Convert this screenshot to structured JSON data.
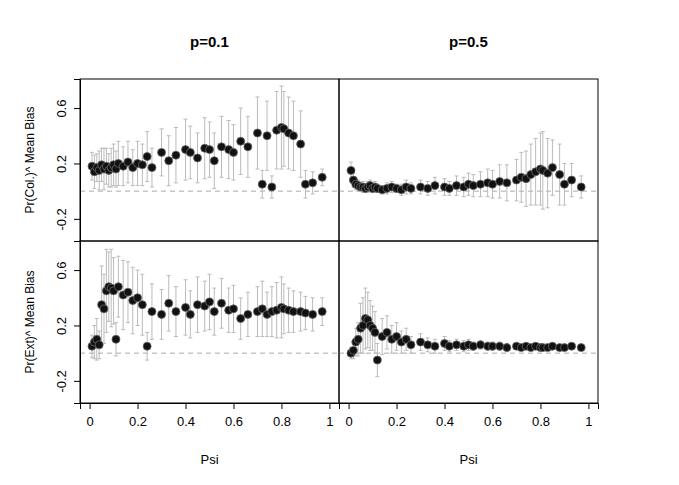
{
  "chart_data": [
    {
      "type": "scatter",
      "title": "p=0.1",
      "ylabel": "Pr(Col.)^ Mean Bias",
      "xlim": [
        -0.04,
        1.04
      ],
      "ylim": [
        -0.36,
        0.81
      ],
      "yticks": [
        -0.2,
        0.2,
        0.6
      ],
      "tick_labels": "y",
      "hline": 0,
      "x": [
        0.01,
        0.02,
        0.03,
        0.04,
        0.05,
        0.06,
        0.07,
        0.08,
        0.09,
        0.1,
        0.11,
        0.12,
        0.14,
        0.16,
        0.18,
        0.2,
        0.22,
        0.24,
        0.26,
        0.3,
        0.33,
        0.36,
        0.4,
        0.42,
        0.45,
        0.48,
        0.5,
        0.52,
        0.55,
        0.58,
        0.6,
        0.63,
        0.66,
        0.7,
        0.72,
        0.74,
        0.76,
        0.78,
        0.8,
        0.81,
        0.83,
        0.85,
        0.88,
        0.9,
        0.93,
        0.97
      ],
      "values": [
        0.18,
        0.14,
        0.17,
        0.15,
        0.19,
        0.16,
        0.18,
        0.15,
        0.17,
        0.19,
        0.16,
        0.2,
        0.18,
        0.21,
        0.17,
        0.2,
        0.19,
        0.25,
        0.17,
        0.28,
        0.22,
        0.26,
        0.3,
        0.28,
        0.24,
        0.31,
        0.3,
        0.22,
        0.32,
        0.3,
        0.28,
        0.36,
        0.32,
        0.42,
        0.05,
        0.4,
        0.03,
        0.44,
        0.46,
        0.45,
        0.42,
        0.4,
        0.34,
        0.05,
        0.06,
        0.1
      ],
      "errors": [
        0.1,
        0.12,
        0.1,
        0.14,
        0.12,
        0.15,
        0.13,
        0.12,
        0.14,
        0.15,
        0.13,
        0.16,
        0.14,
        0.15,
        0.13,
        0.16,
        0.15,
        0.18,
        0.14,
        0.17,
        0.18,
        0.2,
        0.22,
        0.19,
        0.18,
        0.22,
        0.2,
        0.2,
        0.22,
        0.21,
        0.2,
        0.24,
        0.22,
        0.26,
        0.1,
        0.25,
        0.08,
        0.28,
        0.3,
        0.27,
        0.26,
        0.25,
        0.24,
        0.1,
        0.08,
        0.06
      ]
    },
    {
      "type": "scatter",
      "title": "p=0.5",
      "xlim": [
        -0.04,
        1.04
      ],
      "ylim": [
        -0.36,
        0.81
      ],
      "tick_labels": false,
      "hline": 0,
      "x": [
        0.01,
        0.02,
        0.03,
        0.04,
        0.05,
        0.06,
        0.07,
        0.08,
        0.09,
        0.1,
        0.11,
        0.12,
        0.14,
        0.16,
        0.18,
        0.2,
        0.22,
        0.24,
        0.26,
        0.3,
        0.33,
        0.36,
        0.4,
        0.42,
        0.45,
        0.48,
        0.5,
        0.52,
        0.55,
        0.58,
        0.6,
        0.63,
        0.66,
        0.7,
        0.72,
        0.74,
        0.76,
        0.78,
        0.8,
        0.81,
        0.83,
        0.85,
        0.88,
        0.9,
        0.93,
        0.97
      ],
      "values": [
        0.15,
        0.08,
        0.05,
        0.04,
        0.03,
        0.03,
        0.02,
        0.03,
        0.04,
        0.02,
        0.03,
        0.02,
        0.01,
        0.02,
        0.03,
        0.02,
        0.01,
        0.03,
        0.02,
        0.03,
        0.02,
        0.04,
        0.03,
        0.02,
        0.04,
        0.03,
        0.05,
        0.04,
        0.05,
        0.06,
        0.05,
        0.07,
        0.06,
        0.08,
        0.1,
        0.09,
        0.12,
        0.14,
        0.16,
        0.15,
        0.13,
        0.17,
        0.12,
        0.05,
        0.08,
        0.03
      ],
      "errors": [
        0.06,
        0.05,
        0.04,
        0.04,
        0.03,
        0.04,
        0.03,
        0.04,
        0.04,
        0.03,
        0.04,
        0.03,
        0.03,
        0.04,
        0.04,
        0.03,
        0.04,
        0.05,
        0.04,
        0.05,
        0.05,
        0.06,
        0.06,
        0.05,
        0.07,
        0.07,
        0.08,
        0.08,
        0.09,
        0.1,
        0.1,
        0.12,
        0.13,
        0.15,
        0.18,
        0.2,
        0.22,
        0.24,
        0.26,
        0.28,
        0.25,
        0.2,
        0.22,
        0.15,
        0.12,
        0.08
      ]
    },
    {
      "type": "scatter",
      "ylabel": "Pr(Ext)^ Mean Bias",
      "xlabel": "Psi",
      "xlim": [
        -0.04,
        1.04
      ],
      "ylim": [
        -0.36,
        0.81
      ],
      "xticks": [
        0,
        0.2,
        0.4,
        0.6,
        0.8,
        1
      ],
      "yticks": [
        -0.2,
        0.2,
        0.6
      ],
      "tick_labels": true,
      "hline": 0,
      "x": [
        0.01,
        0.02,
        0.03,
        0.04,
        0.05,
        0.06,
        0.07,
        0.08,
        0.09,
        0.1,
        0.11,
        0.12,
        0.14,
        0.16,
        0.18,
        0.2,
        0.22,
        0.24,
        0.26,
        0.3,
        0.33,
        0.36,
        0.4,
        0.42,
        0.45,
        0.48,
        0.5,
        0.52,
        0.55,
        0.58,
        0.6,
        0.63,
        0.66,
        0.7,
        0.72,
        0.74,
        0.76,
        0.78,
        0.8,
        0.81,
        0.83,
        0.85,
        0.88,
        0.9,
        0.93,
        0.97
      ],
      "values": [
        0.05,
        0.08,
        0.1,
        0.06,
        0.35,
        0.32,
        0.45,
        0.48,
        0.47,
        0.45,
        0.1,
        0.48,
        0.42,
        0.44,
        0.38,
        0.4,
        0.35,
        0.05,
        0.3,
        0.28,
        0.36,
        0.3,
        0.33,
        0.28,
        0.35,
        0.34,
        0.37,
        0.3,
        0.36,
        0.31,
        0.32,
        0.25,
        0.28,
        0.3,
        0.32,
        0.28,
        0.3,
        0.31,
        0.33,
        0.32,
        0.31,
        0.3,
        0.3,
        0.29,
        0.28,
        0.3
      ],
      "errors": [
        0.08,
        0.12,
        0.15,
        0.1,
        0.28,
        0.25,
        0.3,
        0.25,
        0.28,
        0.24,
        0.12,
        0.22,
        0.25,
        0.22,
        0.24,
        0.2,
        0.22,
        0.1,
        0.2,
        0.18,
        0.2,
        0.18,
        0.2,
        0.17,
        0.2,
        0.18,
        0.2,
        0.17,
        0.18,
        0.16,
        0.17,
        0.15,
        0.16,
        0.18,
        0.2,
        0.16,
        0.18,
        0.2,
        0.22,
        0.18,
        0.16,
        0.15,
        0.14,
        0.12,
        0.12,
        0.1
      ]
    },
    {
      "type": "scatter",
      "xlabel": "Psi",
      "xlim": [
        -0.04,
        1.04
      ],
      "ylim": [
        -0.36,
        0.81
      ],
      "xticks": [
        0,
        0.2,
        0.4,
        0.6,
        0.8,
        1
      ],
      "tick_labels": "x",
      "hline": 0,
      "x": [
        0.01,
        0.02,
        0.03,
        0.04,
        0.05,
        0.06,
        0.07,
        0.08,
        0.09,
        0.1,
        0.11,
        0.12,
        0.14,
        0.16,
        0.18,
        0.2,
        0.22,
        0.24,
        0.26,
        0.3,
        0.33,
        0.36,
        0.4,
        0.42,
        0.45,
        0.48,
        0.5,
        0.52,
        0.55,
        0.58,
        0.6,
        0.63,
        0.66,
        0.7,
        0.72,
        0.74,
        0.76,
        0.78,
        0.8,
        0.81,
        0.83,
        0.85,
        0.88,
        0.9,
        0.93,
        0.97
      ],
      "values": [
        0.0,
        0.02,
        0.08,
        0.1,
        0.18,
        0.2,
        0.25,
        0.24,
        0.2,
        0.18,
        0.15,
        -0.05,
        0.12,
        0.15,
        0.1,
        0.12,
        0.08,
        0.1,
        0.06,
        0.08,
        0.06,
        0.05,
        0.07,
        0.05,
        0.06,
        0.05,
        0.06,
        0.05,
        0.06,
        0.05,
        0.05,
        0.05,
        0.04,
        0.05,
        0.04,
        0.05,
        0.04,
        0.05,
        0.04,
        0.04,
        0.04,
        0.05,
        0.04,
        0.04,
        0.05,
        0.04
      ],
      "errors": [
        0.04,
        0.06,
        0.1,
        0.12,
        0.18,
        0.2,
        0.22,
        0.2,
        0.18,
        0.16,
        0.15,
        0.12,
        0.13,
        0.12,
        0.1,
        0.1,
        0.08,
        0.08,
        0.06,
        0.06,
        0.05,
        0.05,
        0.05,
        0.04,
        0.04,
        0.04,
        0.04,
        0.03,
        0.03,
        0.03,
        0.03,
        0.03,
        0.03,
        0.02,
        0.02,
        0.02,
        0.02,
        0.02,
        0.02,
        0.02,
        0.02,
        0.02,
        0.02,
        0.02,
        0.02,
        0.02
      ]
    }
  ]
}
